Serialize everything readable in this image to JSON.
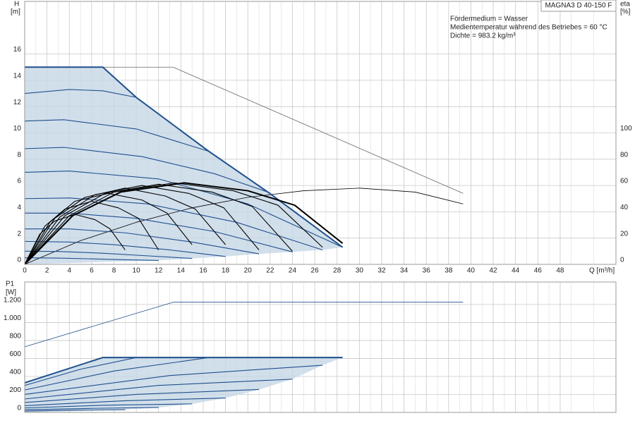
{
  "chart_data": [
    {
      "type": "line",
      "model": "MAGNA3 D 40-150 F",
      "annotations": [
        "Fördermedium = Wasser",
        "Medientemperatur während des Betriebes = 60 °C",
        "Dichte = 983.2 kg/m³"
      ],
      "ylabel": "H",
      "yunit": "[m]",
      "y2label": "eta",
      "y2unit": "[%]",
      "xlabel": "Q [m³/h]",
      "xlim": [
        0,
        53
      ],
      "xticks": [
        0,
        2,
        4,
        6,
        8,
        10,
        12,
        14,
        16,
        18,
        20,
        22,
        24,
        26,
        28,
        30,
        32,
        34,
        36,
        38,
        40,
        42,
        44,
        46,
        48
      ],
      "ylim": [
        0,
        20
      ],
      "yticks": [
        0,
        2,
        4,
        6,
        8,
        10,
        12,
        14,
        16
      ],
      "y2lim": [
        0,
        200
      ],
      "y2ticks": [
        0,
        20,
        40,
        60,
        80,
        100
      ],
      "grid": true,
      "minor_grid": true,
      "x_tick_labels": true,
      "area": {
        "color": "#c6d7e6",
        "x": [
          0,
          7,
          10,
          16.5,
          21.8,
          28.5,
          26.7,
          24,
          21,
          18,
          15,
          12,
          0
        ],
        "values": [
          15,
          15,
          12.7,
          8.6,
          5.5,
          1.3,
          1.1,
          0.95,
          0.8,
          0.6,
          0.45,
          0.3,
          0
        ]
      },
      "series": [
        {
          "color": "#666666",
          "style": "thin",
          "x": [
            0,
            13.3,
            39.3
          ],
          "values": [
            15,
            15,
            5.4
          ]
        },
        {
          "color": "#000000",
          "style": "thin",
          "axis": "y2",
          "x": [
            0,
            5,
            10,
            15,
            20,
            25,
            30,
            35,
            39.3
          ],
          "values": [
            0,
            18,
            32,
            43,
            51,
            56,
            58,
            55,
            46
          ]
        },
        {
          "color": "#1f4f8c",
          "style": "normal",
          "x": [
            0,
            4,
            7,
            10
          ],
          "values": [
            13,
            13.3,
            13.2,
            12.7
          ]
        },
        {
          "color": "#1f4f8c",
          "style": "normal",
          "x": [
            0,
            3.5,
            10,
            16.5
          ],
          "values": [
            10.9,
            11,
            10.3,
            8.6
          ]
        },
        {
          "color": "#1f4f8c",
          "style": "normal",
          "x": [
            0,
            3.5,
            10.5,
            17,
            21.8
          ],
          "values": [
            8.8,
            8.9,
            8.2,
            6.9,
            5.5
          ]
        },
        {
          "color": "#1f4f8c",
          "style": "normal",
          "x": [
            0,
            4,
            12,
            20,
            28.5
          ],
          "values": [
            7,
            7.1,
            6.5,
            4.6,
            1.3
          ]
        },
        {
          "color": "#1f4f8c",
          "style": "normal",
          "x": [
            0,
            4,
            11,
            19,
            26.7
          ],
          "values": [
            5,
            5.05,
            4.6,
            3.2,
            1.1
          ]
        },
        {
          "color": "#1f4f8c",
          "style": "normal",
          "x": [
            0,
            4,
            10,
            17,
            24
          ],
          "values": [
            3.9,
            3.9,
            3.5,
            2.5,
            0.95
          ]
        },
        {
          "color": "#1f4f8c",
          "style": "normal",
          "x": [
            0,
            4,
            9,
            15,
            21
          ],
          "values": [
            2.7,
            2.7,
            2.4,
            1.7,
            0.8
          ]
        },
        {
          "color": "#1f4f8c",
          "style": "normal",
          "x": [
            0,
            4,
            8,
            13,
            18
          ],
          "values": [
            1.75,
            1.7,
            1.5,
            1.1,
            0.6
          ]
        },
        {
          "color": "#1f4f8c",
          "style": "normal",
          "x": [
            0,
            3,
            7,
            11,
            15
          ],
          "values": [
            1,
            0.98,
            0.85,
            0.65,
            0.45
          ]
        },
        {
          "color": "#1f4f8c",
          "style": "normal",
          "x": [
            0,
            3,
            6,
            9,
            12
          ],
          "values": [
            0.5,
            0.48,
            0.42,
            0.35,
            0.3
          ]
        },
        {
          "color": "#1f4f8c",
          "style": "bold",
          "x": [
            0,
            7,
            10,
            16.5,
            21.8,
            28.5
          ],
          "values": [
            15,
            15,
            12.7,
            8.6,
            5.5,
            1.3
          ]
        },
        {
          "color": "#000000",
          "style": "normal",
          "axis": "y2",
          "x": [
            0,
            1.35,
            2.7,
            4.5,
            6.3,
            7.65,
            9
          ],
          "values": [
            0,
            23,
            33,
            38,
            34,
            27,
            11
          ]
        },
        {
          "color": "#000000",
          "style": "normal",
          "axis": "y2",
          "x": [
            0,
            1.8,
            3.6,
            6,
            8.4,
            10.2,
            12
          ],
          "values": [
            0,
            29,
            42,
            48,
            43,
            35,
            11
          ]
        },
        {
          "color": "#000000",
          "style": "normal",
          "axis": "y2",
          "x": [
            0,
            2.25,
            4.5,
            7.5,
            10.5,
            12.75,
            15
          ],
          "values": [
            0,
            32,
            48,
            54,
            49,
            39,
            15
          ]
        },
        {
          "color": "#000000",
          "style": "normal",
          "axis": "y2",
          "x": [
            0,
            2.7,
            5.4,
            9,
            12.6,
            15.3,
            18
          ],
          "values": [
            0,
            35,
            51,
            58,
            52,
            42,
            15
          ]
        },
        {
          "color": "#000000",
          "style": "normal",
          "axis": "y2",
          "x": [
            0,
            3.15,
            6.3,
            10.5,
            14.7,
            17.85,
            21
          ],
          "values": [
            0,
            36,
            53,
            60,
            54,
            43,
            11
          ]
        },
        {
          "color": "#000000",
          "style": "normal",
          "axis": "y2",
          "x": [
            0,
            3.6,
            7.2,
            12,
            16.8,
            20.4,
            24
          ],
          "values": [
            0,
            37,
            54,
            61,
            55,
            44,
            10
          ]
        },
        {
          "color": "#000000",
          "style": "normal",
          "axis": "y2",
          "x": [
            0,
            4,
            8,
            13.4,
            18.7,
            22.7,
            26.7
          ],
          "values": [
            0,
            37,
            55,
            62,
            56,
            45,
            13
          ]
        },
        {
          "color": "#000000",
          "style": "bold",
          "axis": "y2",
          "x": [
            0,
            4.3,
            8.6,
            14.3,
            20,
            24.2,
            28.5
          ],
          "values": [
            0,
            37,
            55,
            62,
            56,
            45,
            16
          ]
        }
      ]
    },
    {
      "type": "line",
      "ylabel": "P1",
      "yunit": "[W]",
      "xlim": [
        0,
        53
      ],
      "xticks": [
        0,
        2,
        4,
        6,
        8,
        10,
        12,
        14,
        16,
        18,
        20,
        22,
        24,
        26,
        28,
        30,
        32,
        34,
        36,
        38,
        40,
        42,
        44,
        46,
        48
      ],
      "ylim": [
        0,
        1450
      ],
      "yticks": [
        0,
        200,
        400,
        600,
        800,
        {
          "value": 1000,
          "label": "1.000"
        },
        {
          "value": 1200,
          "label": "1.200"
        }
      ],
      "grid": true,
      "minor_grid": true,
      "x_tick_labels": false,
      "area": {
        "color": "#c6d7e6",
        "x": [
          0,
          7,
          28.5,
          26.7,
          24,
          21,
          18,
          15,
          12,
          9,
          0
        ],
        "values": [
          330,
          610,
          610,
          525,
          370,
          255,
          160,
          95,
          55,
          30,
          0
        ]
      },
      "series": [
        {
          "color": "#1f4f8c",
          "style": "thin",
          "x": [
            0,
            13.3,
            39.3
          ],
          "values": [
            730,
            1225,
            1225
          ]
        },
        {
          "color": "#1f4f8c",
          "style": "normal",
          "x": [
            0,
            5,
            10
          ],
          "values": [
            300,
            480,
            610
          ]
        },
        {
          "color": "#1f4f8c",
          "style": "normal",
          "x": [
            0,
            8,
            16.5
          ],
          "values": [
            250,
            460,
            610
          ]
        },
        {
          "color": "#1f4f8c",
          "style": "normal",
          "x": [
            0,
            13,
            26.7
          ],
          "values": [
            200,
            410,
            525
          ]
        },
        {
          "color": "#1f4f8c",
          "style": "normal",
          "x": [
            0,
            12,
            24
          ],
          "values": [
            150,
            300,
            370
          ]
        },
        {
          "color": "#1f4f8c",
          "style": "normal",
          "x": [
            0,
            10,
            21
          ],
          "values": [
            110,
            200,
            255
          ]
        },
        {
          "color": "#1f4f8c",
          "style": "normal",
          "x": [
            0,
            9,
            18
          ],
          "values": [
            75,
            130,
            160
          ]
        },
        {
          "color": "#1f4f8c",
          "style": "normal",
          "x": [
            0,
            7,
            15
          ],
          "values": [
            50,
            80,
            95
          ]
        },
        {
          "color": "#1f4f8c",
          "style": "normal",
          "x": [
            0,
            6,
            12
          ],
          "values": [
            30,
            45,
            55
          ]
        },
        {
          "color": "#1f4f8c",
          "style": "normal",
          "x": [
            0,
            4.5,
            9
          ],
          "values": [
            15,
            25,
            30
          ]
        },
        {
          "color": "#1f4f8c",
          "style": "bold",
          "x": [
            0,
            7,
            28.5
          ],
          "values": [
            330,
            610,
            610
          ]
        }
      ]
    }
  ]
}
